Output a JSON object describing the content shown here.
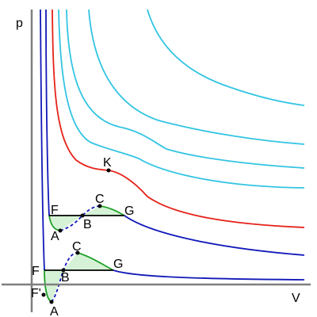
{
  "axes": {
    "x_label": "V",
    "y_label": "p"
  },
  "colors": {
    "axis": "#7f7f7f",
    "supercritical": "#33c4e3",
    "critical": "#e5221a",
    "subcritical": "#1119b8",
    "tieline": "#000000",
    "metastable": "#1fa02a",
    "metastable_fill": "#d6f2d6",
    "unstable": "#1119b8"
  },
  "points": {
    "K": "K",
    "upper": {
      "F": "F",
      "A": "A",
      "B": "B",
      "C": "C",
      "G": "G"
    },
    "lower": {
      "F": "F",
      "F_prime": "F'",
      "A": "A",
      "B": "B",
      "C": "C",
      "G": "G"
    }
  }
}
